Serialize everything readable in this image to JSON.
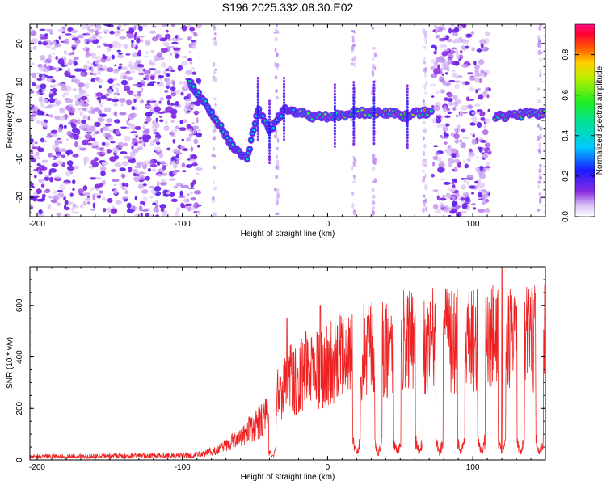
{
  "title": "S196.2025.332.08.30.E02",
  "colors": {
    "snr_line": "#ee2222",
    "spec_bg": "#ffffff",
    "axis": "#000000"
  },
  "chart_data": [
    {
      "type": "heatmap",
      "name": "spectrogram",
      "xlabel": "Height of straight line (km)",
      "ylabel": "Frequency (Hz)",
      "xlim": [
        -205,
        150
      ],
      "ylim": [
        -25,
        25
      ],
      "xticks": [
        -200,
        -100,
        0,
        100
      ],
      "yticks": [
        -20,
        -10,
        0,
        10,
        20
      ],
      "colorbar": {
        "label": "Normalized spectral amplitude",
        "range": [
          0,
          0.95
        ],
        "ticks": [
          0.0,
          0.2,
          0.4,
          0.6,
          0.8
        ],
        "tick_labels": [
          "0.0",
          "0.2",
          "0.4",
          "0.6",
          "0.8"
        ],
        "colormap": "rainbow (white → violet → blue → cyan → green → yellow → red → magenta)"
      },
      "features": {
        "noise_regions_km": [
          [
            -205,
            -88
          ],
          [
            72,
            112
          ]
        ],
        "sparse_noise_vertical_lines_km": [
          -78,
          -35,
          18,
          32,
          67,
          146
        ],
        "signal_track_hz": [
          [
            -95,
            10
          ],
          [
            -80,
            2
          ],
          [
            -65,
            -7
          ],
          [
            -55,
            -10
          ],
          [
            -48,
            3
          ],
          [
            -40,
            -3
          ],
          [
            -30,
            3
          ],
          [
            -10,
            1
          ],
          [
            0,
            1
          ],
          [
            20,
            2
          ],
          [
            40,
            2
          ],
          [
            55,
            1
          ],
          [
            60,
            2
          ],
          [
            70,
            2
          ],
          [
            115,
            1
          ],
          [
            150,
            2
          ]
        ],
        "signal_gaps_km": [
          [
            72,
            115
          ]
        ]
      }
    },
    {
      "type": "line",
      "name": "snr",
      "xlabel": "Height of straight line (km)",
      "ylabel": "SNR (10 * v/v)",
      "xlim": [
        -205,
        150
      ],
      "ylim": [
        0,
        750
      ],
      "xticks": [
        -200,
        -100,
        0,
        100
      ],
      "yticks": [
        0,
        200,
        400,
        600
      ],
      "series": [
        {
          "name": "SNR",
          "envelope": {
            "x": [
              -205,
              -100,
              -85,
              -75,
              -60,
              -45,
              -35,
              -25,
              -15,
              -5,
              5,
              15,
              30,
              45,
              60,
              80,
              100,
              115,
              130,
              150
            ],
            "y": [
              15,
              20,
              25,
              50,
              110,
              190,
              290,
              380,
              400,
              420,
              470,
              500,
              520,
              540,
              560,
              560,
              560,
              580,
              560,
              570
            ]
          },
          "dips_to_baseline_km": [
            -38,
            20,
            35,
            48,
            63,
            77,
            92,
            106,
            120,
            133,
            146
          ],
          "peak_spikes": [
            [
              -28,
              550
            ],
            [
              -15,
              500
            ],
            [
              -5,
              600
            ],
            [
              120,
              740
            ]
          ]
        }
      ]
    }
  ]
}
